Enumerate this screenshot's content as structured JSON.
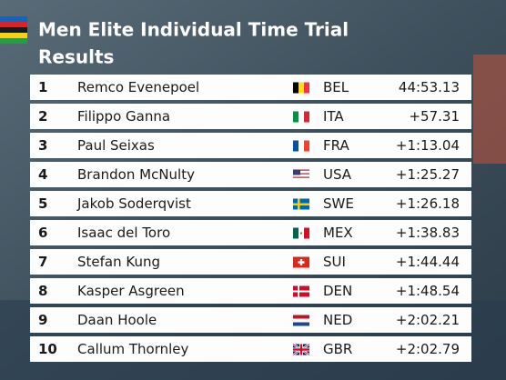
{
  "header": {
    "title": [
      "Men Elite Individual Time Trial",
      "Results"
    ]
  },
  "table": {
    "rows": [
      [
        "1",
        "Remco Evenepoel",
        "BEL",
        "44:53.13"
      ],
      [
        "2",
        "Filippo Ganna",
        "ITA",
        "+57.31"
      ],
      [
        "3",
        "Paul Seixas",
        "FRA",
        "+1:13.04"
      ],
      [
        "4",
        "Brandon McNulty",
        "USA",
        "+1:25.27"
      ],
      [
        "5",
        "Jakob Soderqvist",
        "SWE",
        "+1:26.18"
      ],
      [
        "6",
        "Isaac del Toro",
        "MEX",
        "+1:38.83"
      ],
      [
        "7",
        "Stefan Kung",
        "SUI",
        "+1:44.44"
      ],
      [
        "8",
        "Kasper Asgreen",
        "DEN",
        "+1:48.54"
      ],
      [
        "9",
        "Daan Hoole",
        "NED",
        "+2:02.21"
      ],
      [
        "10",
        "Callum Thornley",
        "GBR",
        "+2:02.79"
      ]
    ]
  }
}
